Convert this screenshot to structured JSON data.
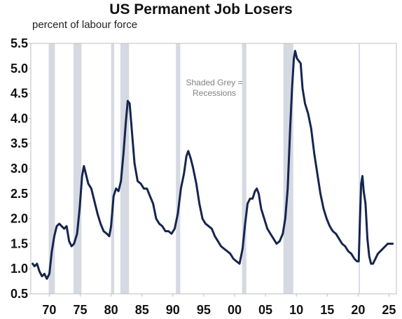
{
  "chart_data": {
    "type": "line",
    "title": "US Permanent Job Losers",
    "subtitle": "percent of labour force",
    "annotation_lines": [
      "Shaded Grey =",
      "Recessions"
    ],
    "ylim": [
      0.5,
      5.5
    ],
    "yticks": [
      "0.5",
      "1.0",
      "1.5",
      "2.0",
      "2.5",
      "3.0",
      "3.5",
      "4.0",
      "4.5",
      "5.0",
      "5.5"
    ],
    "xlim": [
      1967.0,
      2026.2
    ],
    "xticks": [
      {
        "label": "70",
        "year": 1970
      },
      {
        "label": "75",
        "year": 1975
      },
      {
        "label": "80",
        "year": 1980
      },
      {
        "label": "85",
        "year": 1985
      },
      {
        "label": "90",
        "year": 1990
      },
      {
        "label": "95",
        "year": 1995
      },
      {
        "label": "00",
        "year": 2000
      },
      {
        "label": "05",
        "year": 2005
      },
      {
        "label": "10",
        "year": 2010
      },
      {
        "label": "15",
        "year": 2015
      },
      {
        "label": "20",
        "year": 2020
      },
      {
        "label": "25",
        "year": 2025
      }
    ],
    "recessions": [
      [
        1969.9,
        1970.9
      ],
      [
        1973.9,
        1975.2
      ],
      [
        1980.0,
        1980.5
      ],
      [
        1981.5,
        1982.9
      ],
      [
        1990.5,
        1991.2
      ],
      [
        2001.2,
        2001.9
      ],
      [
        2007.9,
        2009.5
      ],
      [
        2020.1,
        2020.3
      ]
    ],
    "series": [
      {
        "color": "#16254f",
        "points": [
          [
            1967.3,
            1.1
          ],
          [
            1967.6,
            1.05
          ],
          [
            1968.0,
            1.1
          ],
          [
            1968.4,
            0.95
          ],
          [
            1968.8,
            0.85
          ],
          [
            1969.2,
            0.9
          ],
          [
            1969.6,
            0.8
          ],
          [
            1970.0,
            0.9
          ],
          [
            1970.4,
            1.35
          ],
          [
            1970.8,
            1.65
          ],
          [
            1971.2,
            1.85
          ],
          [
            1971.6,
            1.9
          ],
          [
            1972.0,
            1.85
          ],
          [
            1972.4,
            1.8
          ],
          [
            1972.8,
            1.85
          ],
          [
            1973.2,
            1.55
          ],
          [
            1973.6,
            1.45
          ],
          [
            1974.0,
            1.5
          ],
          [
            1974.5,
            1.7
          ],
          [
            1974.9,
            2.2
          ],
          [
            1975.3,
            2.85
          ],
          [
            1975.6,
            3.05
          ],
          [
            1975.9,
            2.9
          ],
          [
            1976.3,
            2.7
          ],
          [
            1976.8,
            2.6
          ],
          [
            1977.3,
            2.35
          ],
          [
            1977.8,
            2.1
          ],
          [
            1978.3,
            1.9
          ],
          [
            1978.8,
            1.75
          ],
          [
            1979.3,
            1.7
          ],
          [
            1979.7,
            1.65
          ],
          [
            1980.0,
            1.85
          ],
          [
            1980.4,
            2.45
          ],
          [
            1980.8,
            2.6
          ],
          [
            1981.2,
            2.55
          ],
          [
            1981.6,
            2.75
          ],
          [
            1982.0,
            3.3
          ],
          [
            1982.4,
            3.95
          ],
          [
            1982.7,
            4.35
          ],
          [
            1983.0,
            4.3
          ],
          [
            1983.4,
            3.7
          ],
          [
            1983.8,
            3.1
          ],
          [
            1984.3,
            2.75
          ],
          [
            1984.8,
            2.7
          ],
          [
            1985.3,
            2.6
          ],
          [
            1985.8,
            2.6
          ],
          [
            1986.3,
            2.45
          ],
          [
            1986.8,
            2.3
          ],
          [
            1987.3,
            2.0
          ],
          [
            1987.8,
            1.9
          ],
          [
            1988.3,
            1.85
          ],
          [
            1988.8,
            1.75
          ],
          [
            1989.3,
            1.75
          ],
          [
            1989.8,
            1.7
          ],
          [
            1990.3,
            1.8
          ],
          [
            1990.8,
            2.1
          ],
          [
            1991.3,
            2.6
          ],
          [
            1991.8,
            2.9
          ],
          [
            1992.2,
            3.25
          ],
          [
            1992.5,
            3.35
          ],
          [
            1992.9,
            3.2
          ],
          [
            1993.3,
            3.0
          ],
          [
            1993.8,
            2.7
          ],
          [
            1994.3,
            2.3
          ],
          [
            1994.8,
            2.0
          ],
          [
            1995.3,
            1.9
          ],
          [
            1995.8,
            1.85
          ],
          [
            1996.3,
            1.8
          ],
          [
            1996.8,
            1.65
          ],
          [
            1997.3,
            1.55
          ],
          [
            1997.8,
            1.45
          ],
          [
            1998.3,
            1.4
          ],
          [
            1998.8,
            1.35
          ],
          [
            1999.3,
            1.3
          ],
          [
            1999.8,
            1.2
          ],
          [
            2000.3,
            1.15
          ],
          [
            2000.8,
            1.1
          ],
          [
            2001.3,
            1.4
          ],
          [
            2001.7,
            1.9
          ],
          [
            2002.1,
            2.3
          ],
          [
            2002.5,
            2.4
          ],
          [
            2002.9,
            2.4
          ],
          [
            2003.3,
            2.55
          ],
          [
            2003.6,
            2.6
          ],
          [
            2003.9,
            2.5
          ],
          [
            2004.3,
            2.2
          ],
          [
            2004.8,
            2.0
          ],
          [
            2005.3,
            1.8
          ],
          [
            2005.8,
            1.7
          ],
          [
            2006.3,
            1.6
          ],
          [
            2006.8,
            1.5
          ],
          [
            2007.3,
            1.55
          ],
          [
            2007.8,
            1.7
          ],
          [
            2008.2,
            2.0
          ],
          [
            2008.6,
            2.6
          ],
          [
            2009.0,
            3.8
          ],
          [
            2009.3,
            4.6
          ],
          [
            2009.6,
            5.2
          ],
          [
            2009.8,
            5.35
          ],
          [
            2010.1,
            5.2
          ],
          [
            2010.4,
            5.15
          ],
          [
            2010.7,
            5.1
          ],
          [
            2011.0,
            4.6
          ],
          [
            2011.4,
            4.3
          ],
          [
            2011.9,
            4.1
          ],
          [
            2012.4,
            3.8
          ],
          [
            2012.9,
            3.3
          ],
          [
            2013.4,
            2.9
          ],
          [
            2013.9,
            2.5
          ],
          [
            2014.4,
            2.2
          ],
          [
            2014.9,
            2.0
          ],
          [
            2015.4,
            1.85
          ],
          [
            2015.9,
            1.75
          ],
          [
            2016.4,
            1.7
          ],
          [
            2016.9,
            1.6
          ],
          [
            2017.4,
            1.5
          ],
          [
            2017.9,
            1.45
          ],
          [
            2018.4,
            1.35
          ],
          [
            2018.9,
            1.3
          ],
          [
            2019.4,
            1.2
          ],
          [
            2019.8,
            1.15
          ],
          [
            2020.1,
            1.15
          ],
          [
            2020.3,
            2.0
          ],
          [
            2020.5,
            2.7
          ],
          [
            2020.7,
            2.85
          ],
          [
            2020.9,
            2.55
          ],
          [
            2021.2,
            2.3
          ],
          [
            2021.5,
            1.6
          ],
          [
            2021.8,
            1.25
          ],
          [
            2022.1,
            1.1
          ],
          [
            2022.4,
            1.1
          ],
          [
            2022.8,
            1.2
          ],
          [
            2023.2,
            1.3
          ],
          [
            2023.6,
            1.35
          ],
          [
            2024.0,
            1.4
          ],
          [
            2024.4,
            1.45
          ],
          [
            2024.8,
            1.5
          ],
          [
            2025.2,
            1.5
          ],
          [
            2025.6,
            1.5
          ]
        ]
      }
    ]
  }
}
